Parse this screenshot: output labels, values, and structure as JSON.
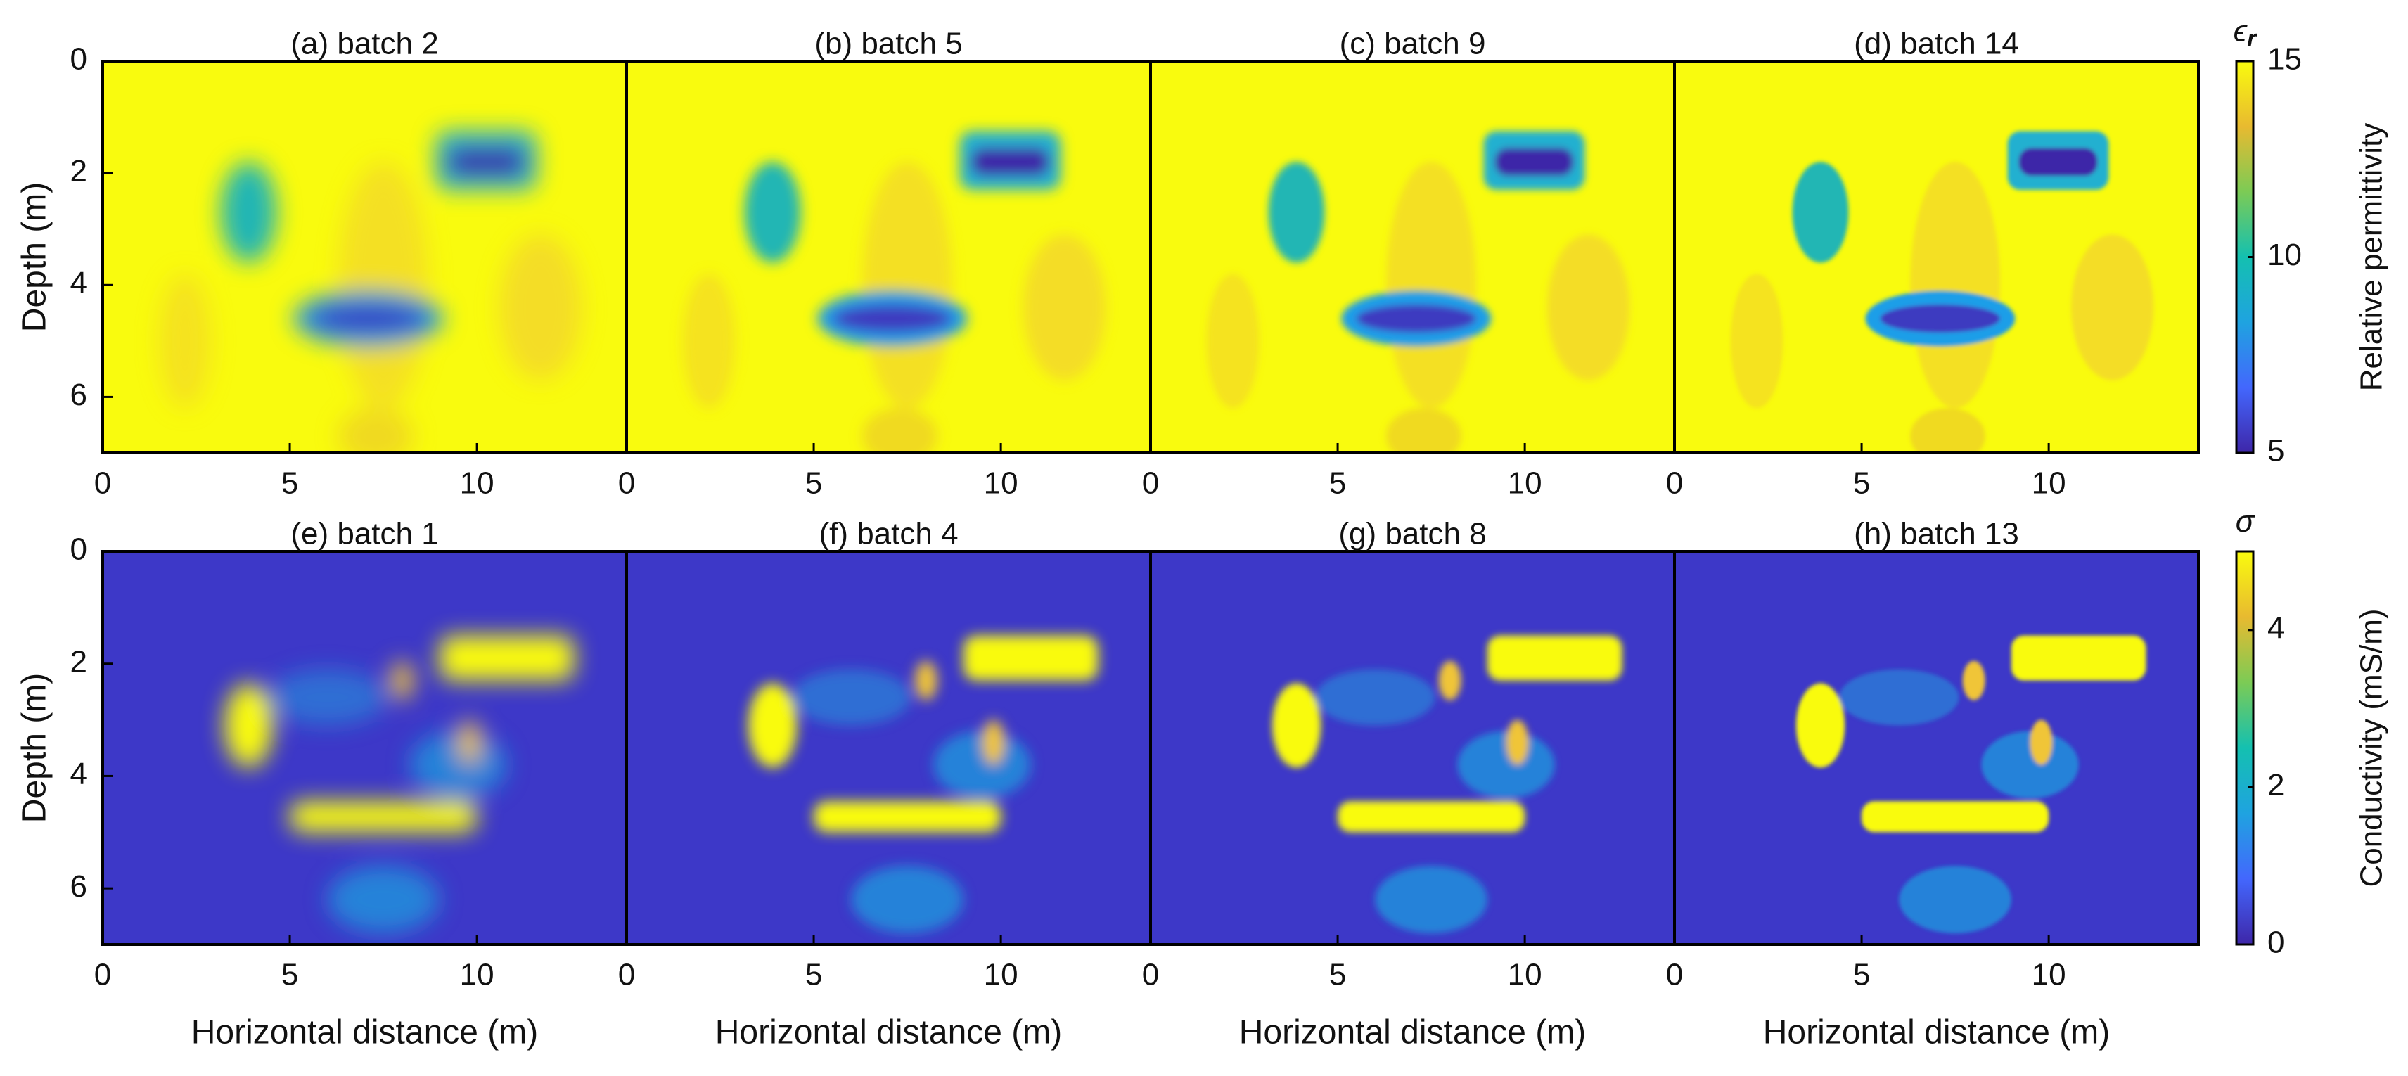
{
  "chart_data": [
    {
      "type": "heatmap",
      "panels": [
        {
          "title": "(a) batch 2"
        },
        {
          "title": "(b) batch 5"
        },
        {
          "title": "(c) batch 9"
        },
        {
          "title": "(d) batch 14"
        }
      ],
      "ylabel": "Depth (m)",
      "xlim": [
        0,
        14
      ],
      "xticks": [
        0,
        5,
        10
      ],
      "ylim": [
        0,
        7
      ],
      "yticks": [
        0,
        2,
        4,
        6
      ],
      "y_reversed": true,
      "colormap": [
        "#3e26a8",
        "#4367fd",
        "#1fa3e0",
        "#14c0b0",
        "#7ccb55",
        "#e8ba30",
        "#f9fb0e"
      ],
      "colorbar": {
        "symbol": "ϵ",
        "symbol_subscript": "r",
        "label": "Relative permittivity",
        "lim": [
          5,
          15
        ],
        "ticks": [
          5,
          10,
          15
        ]
      }
    },
    {
      "type": "heatmap",
      "panels": [
        {
          "title": "(e) batch 1"
        },
        {
          "title": "(f) batch 4"
        },
        {
          "title": "(g) batch 8"
        },
        {
          "title": "(h) batch 13"
        }
      ],
      "ylabel": "Depth (m)",
      "xlabel": "Horizontal distance (m)",
      "xlim": [
        0,
        14
      ],
      "xticks": [
        0,
        5,
        10
      ],
      "ylim": [
        0,
        7
      ],
      "yticks": [
        0,
        2,
        4,
        6
      ],
      "y_reversed": true,
      "colormap": [
        "#3e26a8",
        "#4367fd",
        "#1fa3e0",
        "#14c0b0",
        "#7ccb55",
        "#e8ba30",
        "#f9fb0e"
      ],
      "colorbar": {
        "symbol": "σ",
        "label": "Conductivity (mS/m)",
        "lim": [
          0,
          5
        ],
        "ticks": [
          0,
          2,
          4
        ]
      }
    }
  ]
}
